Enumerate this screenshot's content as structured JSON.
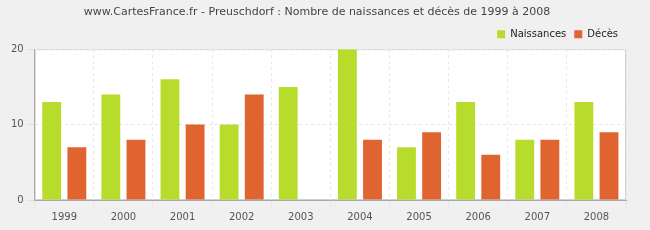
{
  "chart_data": {
    "type": "bar",
    "title": "www.CartesFrance.fr - Preuschdorf : Nombre de naissances et décès de 1999 à 2008",
    "categories": [
      "1999",
      "2000",
      "2001",
      "2002",
      "2003",
      "2004",
      "2005",
      "2006",
      "2007",
      "2008"
    ],
    "series": [
      {
        "name": "Naissances",
        "color": "#b8dc2b",
        "values": [
          13,
          14,
          16,
          10,
          15,
          20,
          7,
          13,
          8,
          13
        ]
      },
      {
        "name": "Décès",
        "color": "#e0642f",
        "values": [
          7,
          8,
          10,
          14,
          0,
          8,
          9,
          6,
          8,
          9
        ]
      }
    ],
    "ylim": [
      0,
      20
    ],
    "yticks": [
      0,
      10,
      20
    ],
    "grid": true,
    "legend": "top-right"
  }
}
